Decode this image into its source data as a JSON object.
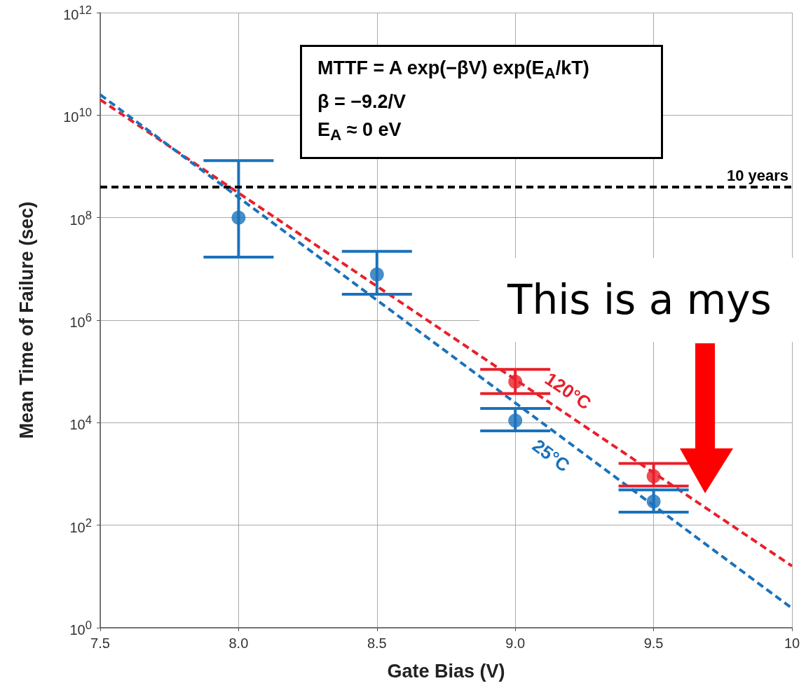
{
  "chart_data": {
    "type": "scatter",
    "xlabel": "Gate Bias (V)",
    "ylabel": "Mean Time of Failure (sec)",
    "log": "y",
    "xlim": [
      7.5,
      10
    ],
    "ylim": [
      1,
      1000000000000.0
    ],
    "xticks": [
      7.5,
      {
        "value": 8,
        "label": "8.0"
      },
      8.5,
      {
        "value": 9,
        "label": "9.0"
      },
      9.5,
      10
    ],
    "yticks": [
      {
        "value": 1,
        "label": "10$^{0}$"
      },
      {
        "value": 100,
        "label": "10$^{2}$"
      },
      {
        "value": 10000,
        "label": "10$^{4}$"
      },
      {
        "value": 1000000,
        "label": "10$^{6}$"
      },
      {
        "value": 100000000,
        "label": "10$^{8}$"
      },
      {
        "value": 10000000000,
        "label": "10$^{10}$"
      },
      {
        "value": 1000000000000,
        "label": "10$^{12}$"
      }
    ],
    "grid": true,
    "marker": "circle",
    "series": [
      {
        "name": "120°C",
        "type": "line",
        "color": "#e8202a",
        "x": [
          7.5,
          10
        ],
        "values": [
          20000000000.0,
          16
        ],
        "line_style": "dashed",
        "marker": "none"
      },
      {
        "name": "25°C",
        "type": "line",
        "color": "#1a72bb",
        "x": [
          7.5,
          10
        ],
        "values": [
          25000000000.0,
          2.4
        ],
        "line_style": "dashed",
        "marker": "none"
      },
      {
        "type": "scatter",
        "color": "#e8202a",
        "x": [
          9,
          9.5
        ],
        "values": [
          63000,
          900
        ],
        "errors": [
          [
            37000,
            110000
          ],
          [
            580,
            1600
          ]
        ]
      },
      {
        "type": "scatter",
        "color": "#1a72bb",
        "x": [
          8,
          8.5,
          9,
          9.5
        ],
        "values": [
          100000000,
          7800000,
          11000,
          290
        ],
        "errors": [
          [
            17000000,
            1300000000
          ],
          [
            3200000,
            22000000
          ],
          [
            6900,
            19000
          ],
          [
            180,
            490
          ]
        ]
      }
    ],
    "ref_lines": [
      {
        "axis": "y",
        "value": 400000000,
        "label": "10 years",
        "color": "#000000",
        "line_style": "dashed"
      }
    ],
    "annotations": [
      "MTTF = A exp(−βV) exp(E$_{A}$/kT)",
      "β = −9.2/V",
      "E$_{A}$ ≈ 0 eV",
      "This is a mys"
    ]
  }
}
